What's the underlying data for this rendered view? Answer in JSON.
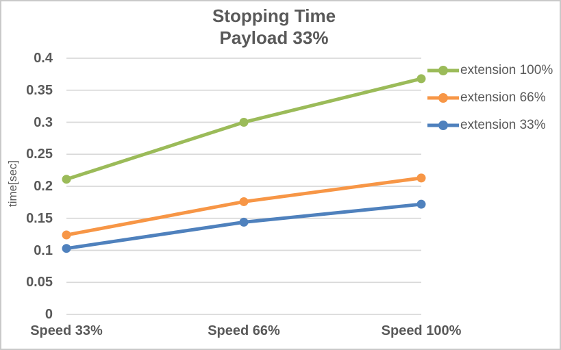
{
  "window": {
    "background": "#ffffff",
    "border_color": "#c9c9c9",
    "text_color": "#595959"
  },
  "chart_data": {
    "type": "line",
    "title": "Stopping Time",
    "subtitle": "Payload 33%",
    "ylabel": "time[sec]",
    "xlabel": "",
    "categories": [
      "Speed 33%",
      "Speed 66%",
      "Speed 100%"
    ],
    "series": [
      {
        "name": "extension 100%",
        "color": "#9bbb59",
        "values": [
          0.211,
          0.3,
          0.368
        ]
      },
      {
        "name": "extension 66%",
        "color": "#f79646",
        "values": [
          0.124,
          0.176,
          0.213
        ]
      },
      {
        "name": "extension 33%",
        "color": "#4f81bd",
        "values": [
          0.103,
          0.144,
          0.172
        ]
      }
    ],
    "ylim": [
      0,
      0.4
    ],
    "ytick_labels": [
      "0",
      "0.05",
      "0.1",
      "0.15",
      "0.2",
      "0.25",
      "0.3",
      "0.35",
      "0.4"
    ],
    "grid": "horizontal",
    "gridline_color": "#d9d9d9",
    "marker": "circle",
    "legend_position": "right"
  }
}
